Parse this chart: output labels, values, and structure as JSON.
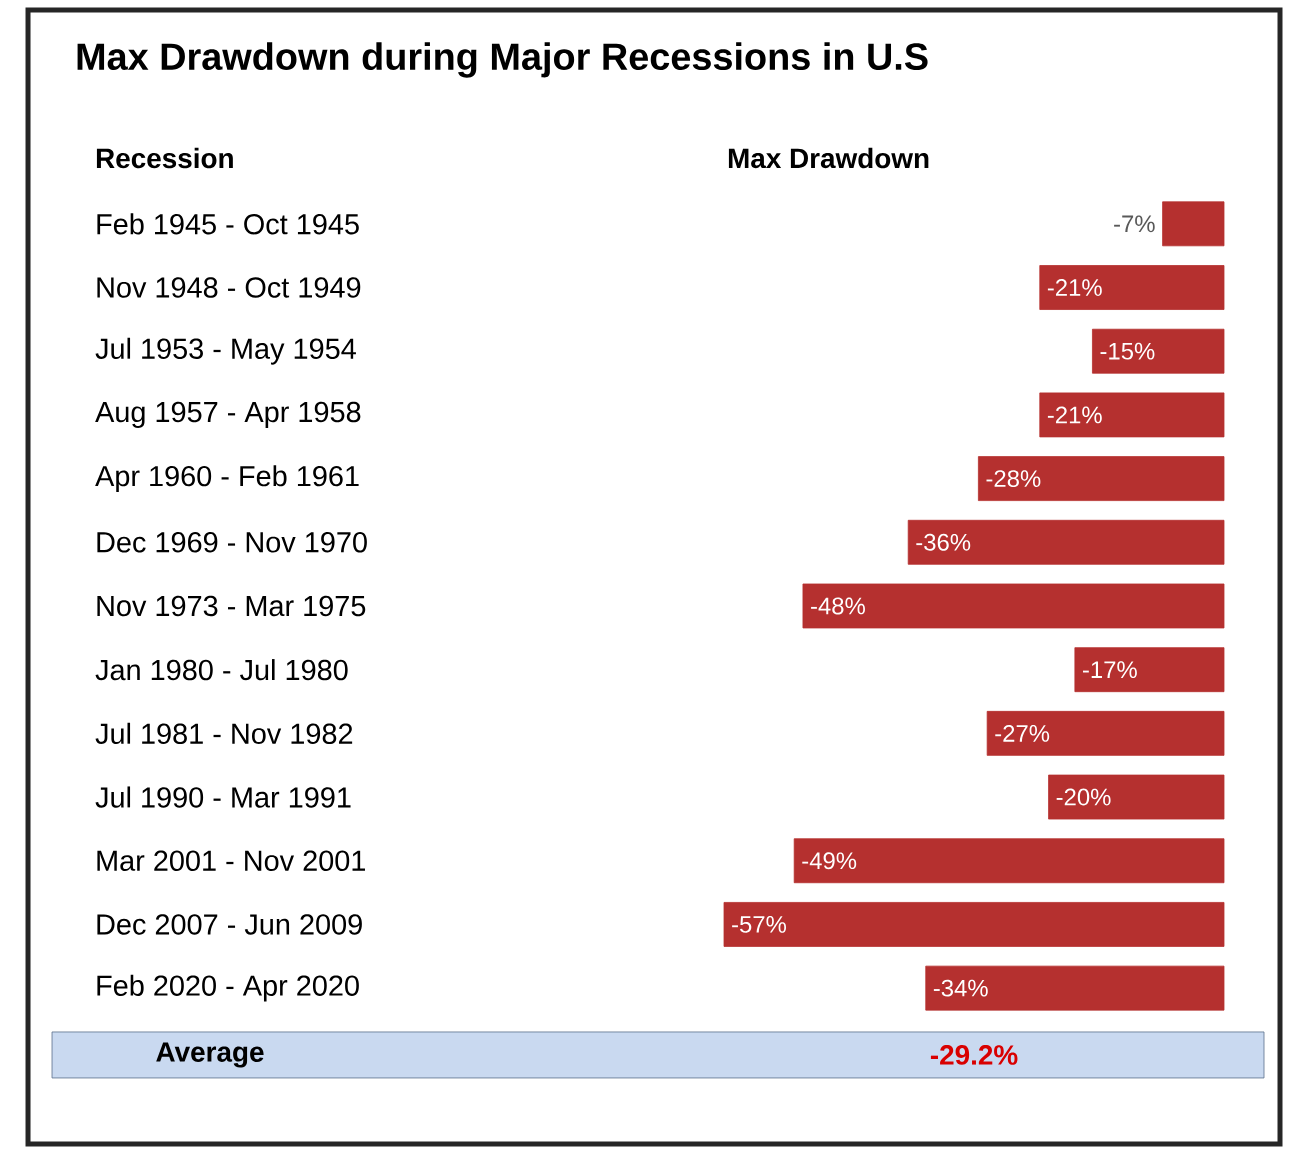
{
  "chart_data": {
    "type": "bar",
    "orientation": "horizontal",
    "title": "Max Drawdown during Major Recessions in U.S",
    "ylabel": "Recession",
    "xlabel": "Max Drawdown",
    "categories": [
      "Feb 1945 - Oct 1945",
      "Nov 1948 - Oct 1949",
      "Jul 1953 - May 1954",
      "Aug 1957 - Apr 1958",
      "Apr 1960 - Feb 1961",
      "Dec 1969 - Nov 1970",
      "Nov 1973 - Mar 1975",
      "Jan 1980 - Jul 1980",
      "Jul 1981 - Nov 1982",
      "Jul 1990 - Mar 1991",
      "Mar 2001 - Nov 2001",
      "Dec 2007 - Jun 2009",
      "Feb 2020 - Apr 2020"
    ],
    "values": [
      -7,
      -21,
      -15,
      -21,
      -28,
      -36,
      -48,
      -17,
      -27,
      -20,
      -49,
      -57,
      -34
    ],
    "value_labels": [
      "-7%",
      "-21%",
      "-15%",
      "-21%",
      "-28%",
      "-36%",
      "-48%",
      "-17%",
      "-27%",
      "-20%",
      "-49%",
      "-57%",
      "-34%"
    ],
    "color": "#b5302f",
    "annotations": [
      "Average",
      "-29.2%"
    ]
  }
}
